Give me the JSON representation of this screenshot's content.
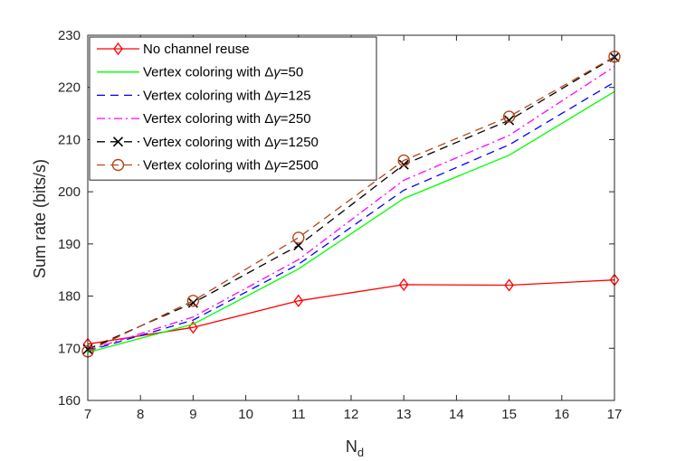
{
  "chart_data": {
    "type": "line",
    "title": "",
    "xlabel_main": "N",
    "xlabel_sub": "d",
    "ylabel": "Sum rate (bits/s)",
    "xlim": [
      7,
      17
    ],
    "ylim": [
      160,
      230
    ],
    "x_ticks": [
      7,
      8,
      9,
      10,
      11,
      12,
      13,
      14,
      15,
      16,
      17
    ],
    "y_ticks": [
      160,
      170,
      180,
      190,
      200,
      210,
      220,
      230
    ],
    "x": [
      7,
      9,
      11,
      13,
      15,
      17
    ],
    "legend_position": "top-left",
    "series": [
      {
        "name": "No channel reuse",
        "label_prefix": "No channel reuse",
        "label_delta": "",
        "label_gamma": "",
        "label_value": "",
        "color": "#ff0000",
        "dash": "",
        "marker": "diamond",
        "values": [
          170.8,
          174.0,
          179.1,
          182.2,
          182.1,
          183.1
        ]
      },
      {
        "name": "Vertex coloring with Δγ=50",
        "label_prefix": "Vertex coloring with ",
        "label_delta": "Δ",
        "label_gamma": "γ",
        "label_value": "=50",
        "color": "#00ff00",
        "dash": "",
        "marker": "none",
        "values": [
          169.2,
          174.6,
          185.2,
          198.7,
          207.0,
          219.2
        ]
      },
      {
        "name": "Vertex coloring with Δγ=125",
        "label_prefix": "Vertex coloring with ",
        "label_delta": "Δ",
        "label_gamma": "γ",
        "label_value": "=125",
        "color": "#0000ff",
        "dash": "9,6",
        "marker": "none",
        "values": [
          169.5,
          175.4,
          186.1,
          200.3,
          209.0,
          221.0
        ]
      },
      {
        "name": "Vertex coloring with Δγ=250",
        "label_prefix": "Vertex coloring with ",
        "label_delta": "Δ",
        "label_gamma": "γ",
        "label_value": "=250",
        "color": "#ff00ff",
        "dash": "9,4,2,4",
        "marker": "none",
        "values": [
          169.6,
          176.0,
          187.0,
          202.2,
          210.8,
          224.0
        ]
      },
      {
        "name": "Vertex coloring with Δγ=1250",
        "label_prefix": "Vertex coloring with ",
        "label_delta": "Δ",
        "label_gamma": "γ",
        "label_value": "=1250",
        "color": "#000000",
        "dash": "9,6",
        "marker": "x",
        "values": [
          169.8,
          178.7,
          189.7,
          205.2,
          213.7,
          225.8
        ]
      },
      {
        "name": "Vertex coloring with Δγ=2500",
        "label_prefix": "Vertex coloring with ",
        "label_delta": "Δ",
        "label_gamma": "γ",
        "label_value": "=2500",
        "color": "#b5461a",
        "dash": "9,6",
        "marker": "circle",
        "values": [
          169.4,
          179.1,
          191.2,
          206.0,
          214.4,
          225.9
        ]
      }
    ]
  }
}
